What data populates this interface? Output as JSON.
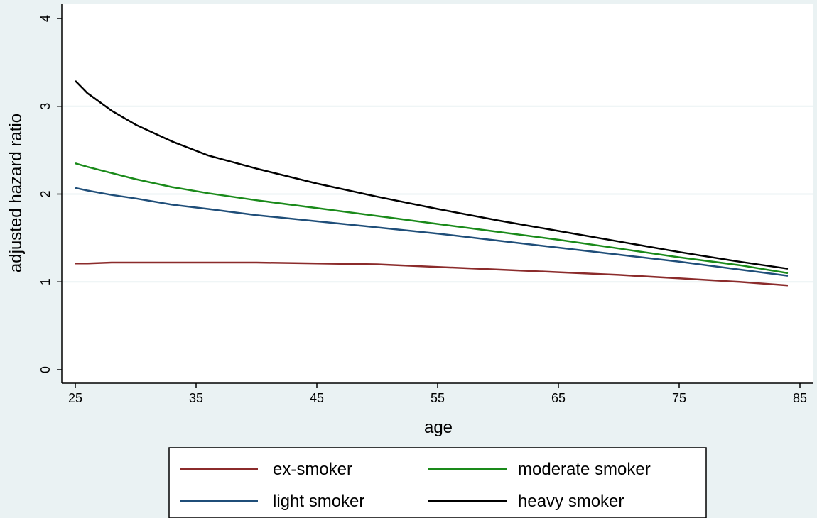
{
  "chart_data": {
    "type": "line",
    "title": "",
    "xlabel": "age",
    "ylabel": "adjusted hazard ratio",
    "xlim": [
      25,
      85
    ],
    "ylim": [
      0,
      4
    ],
    "xticks": [
      25,
      35,
      45,
      55,
      65,
      75,
      85
    ],
    "yticks": [
      0,
      1,
      2,
      3,
      4
    ],
    "grid": "horizontal",
    "legend_position": "bottom",
    "x": [
      25,
      26,
      28,
      30,
      33,
      36,
      40,
      45,
      50,
      55,
      60,
      65,
      70,
      75,
      80,
      84
    ],
    "series": [
      {
        "name": "ex-smoker",
        "color": "#8b2b2b",
        "values": [
          1.21,
          1.21,
          1.22,
          1.22,
          1.22,
          1.22,
          1.22,
          1.21,
          1.2,
          1.17,
          1.14,
          1.11,
          1.08,
          1.04,
          1.0,
          0.96
        ]
      },
      {
        "name": "light smoker",
        "color": "#1f4e79",
        "values": [
          2.07,
          2.04,
          1.99,
          1.95,
          1.88,
          1.83,
          1.76,
          1.69,
          1.62,
          1.55,
          1.47,
          1.39,
          1.31,
          1.23,
          1.14,
          1.07
        ]
      },
      {
        "name": "moderate smoker",
        "color": "#1a8a1a",
        "values": [
          2.35,
          2.31,
          2.24,
          2.17,
          2.08,
          2.01,
          1.93,
          1.84,
          1.75,
          1.66,
          1.57,
          1.48,
          1.38,
          1.28,
          1.19,
          1.1
        ]
      },
      {
        "name": "heavy smoker",
        "color": "#000000",
        "values": [
          3.29,
          3.15,
          2.95,
          2.79,
          2.6,
          2.44,
          2.29,
          2.12,
          1.97,
          1.83,
          1.7,
          1.58,
          1.46,
          1.34,
          1.23,
          1.15
        ]
      }
    ]
  }
}
